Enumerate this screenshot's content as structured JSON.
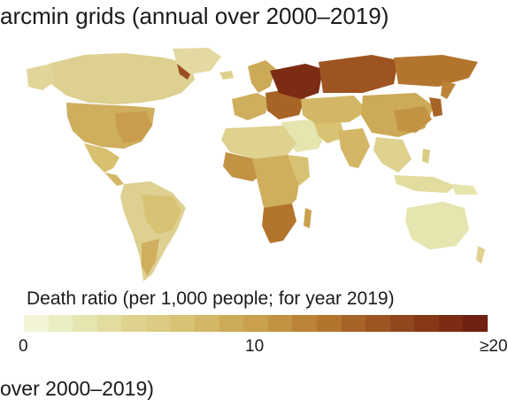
{
  "header": {
    "title": "arcmin grids (annual over 2000–2019)"
  },
  "legend": {
    "title": "Death ratio (per 1,000 people; for year 2019)",
    "ticks": [
      "0",
      "10",
      "≥20"
    ],
    "colors": [
      "#f3f4d6",
      "#ebeec3",
      "#e6e5b0",
      "#e2dc9f",
      "#dfd18e",
      "#dccb82",
      "#d8c274",
      "#d3b766",
      "#ccaa58",
      "#c8a04e",
      "#c39344",
      "#bc8338",
      "#b3752e",
      "#a86427",
      "#9d5421",
      "#92461d",
      "#873817",
      "#7c2c13",
      "#702010"
    ]
  },
  "footer": {
    "caption": "over 2000–2019)"
  },
  "map": {
    "colors": {
      "low": "#e8e6b8",
      "mid_low": "#ddd091",
      "mid": "#cfae5e",
      "mid_high": "#bd8740",
      "high": "#9a4f22",
      "very_high": "#7a2a12",
      "ocean": "#ffffff"
    }
  }
}
